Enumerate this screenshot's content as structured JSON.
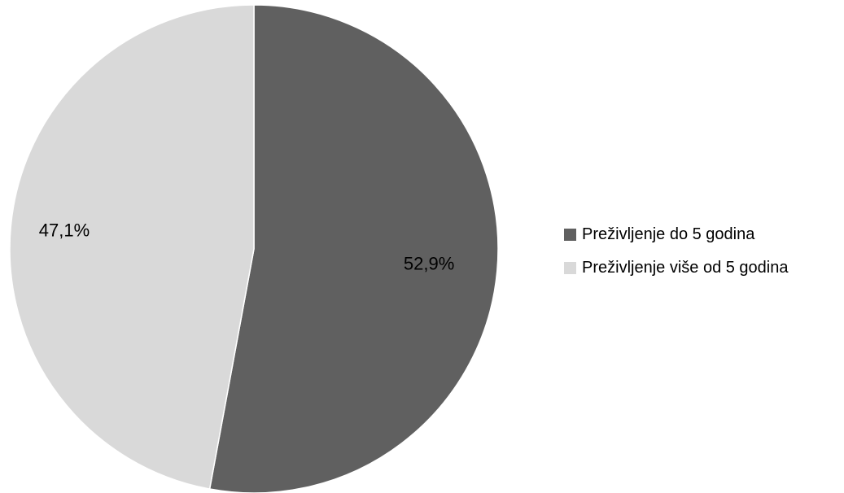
{
  "chart_data": {
    "type": "pie",
    "slices": [
      {
        "label": "Preživljenje do 5 godina",
        "value": 52.9,
        "value_label": "52,9%",
        "color": "#606060"
      },
      {
        "label": "Preživljenje više od 5 godina",
        "value": 47.1,
        "value_label": "47,1%",
        "color": "#d9d9d9"
      }
    ],
    "start_angle_deg": 0,
    "direction": "clockwise",
    "legend_position": "right",
    "title": ""
  }
}
